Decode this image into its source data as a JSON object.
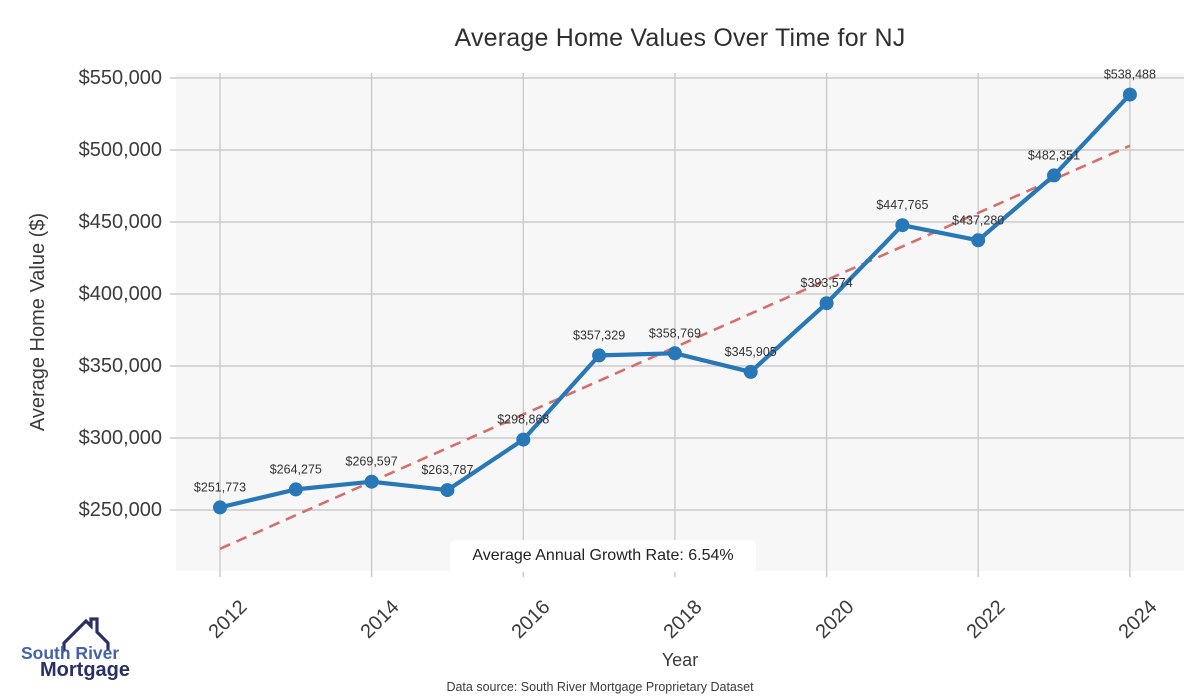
{
  "page": {
    "footer": "Data source: South River Mortgage Proprietary Dataset"
  },
  "logo": {
    "line1": "South River",
    "line2": "Mortgage",
    "color_primary": "#2a3066",
    "color_secondary": "#4263ac"
  },
  "chart_data": {
    "type": "line",
    "title": "Average Home Values Over Time for NJ",
    "xlabel": "Year",
    "ylabel": "Average Home Value ($)",
    "annotation": "Average Annual Growth Rate: 6.54%",
    "x": [
      2012,
      2013,
      2014,
      2015,
      2016,
      2017,
      2018,
      2019,
      2020,
      2021,
      2022,
      2023,
      2024
    ],
    "series": [
      {
        "name": "Average Home Value",
        "values": [
          251773,
          264275,
          269597,
          263787,
          298868,
          357329,
          358769,
          345905,
          393574,
          447765,
          437280,
          482351,
          538488
        ]
      }
    ],
    "point_labels": [
      "$251,773",
      "$264,275",
      "$269,597",
      "$263,787",
      "$298,868",
      "$357,329",
      "$358,769",
      "$345,905",
      "$393,574",
      "$447,765",
      "$437,280",
      "$482,351",
      "$538,488"
    ],
    "trend_line": {
      "style": "dashed",
      "x": [
        2012,
        2024
      ],
      "values": [
        223000,
        503000
      ]
    },
    "xticks": [
      2012,
      2014,
      2016,
      2018,
      2020,
      2022,
      2024
    ],
    "yticks": [
      250000,
      300000,
      350000,
      400000,
      450000,
      500000,
      550000
    ],
    "ytick_labels": [
      "$250,000",
      "$300,000",
      "$350,000",
      "$400,000",
      "$450,000",
      "$500,000",
      "$550,000"
    ],
    "xlim": [
      2011.42,
      2024.714
    ],
    "ylim": [
      207600,
      553472
    ],
    "grid": true,
    "legend": "none",
    "colors": {
      "line": "#2878b8",
      "marker": "#2878b8",
      "trend": "#d4706c",
      "plot_bg": "#f7f7f8",
      "grid": "#cbcbcb",
      "tick": "#c8c8c8",
      "text": "#3b3b3b",
      "point_label": "#333333"
    }
  }
}
